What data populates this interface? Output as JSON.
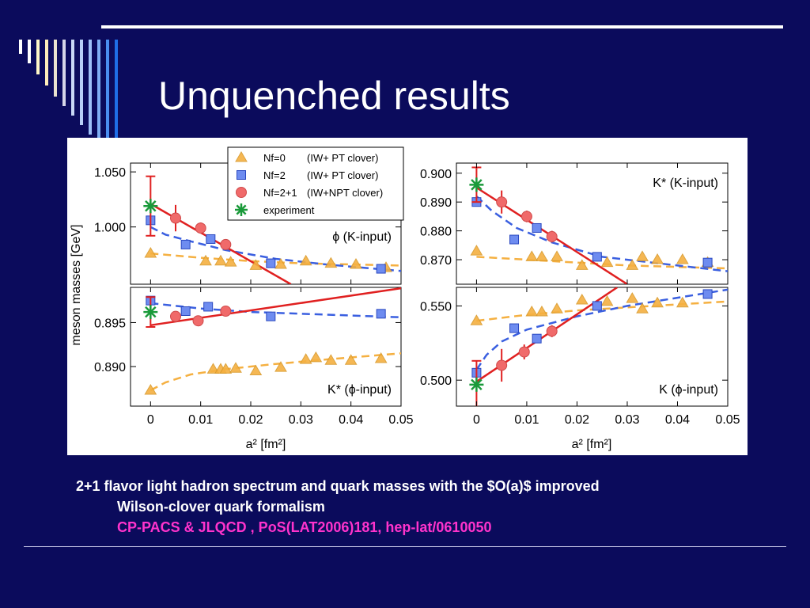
{
  "slide": {
    "title": "Unquenched results",
    "caption_line1": "2+1 flavor light hadron spectrum and quark masses with the $O(a)$ improved",
    "caption_line2": "Wilson-clover quark formalism",
    "citation": "CP-PACS & JLQCD , PoS(LAT2006)181, hep-lat/0610050",
    "accent_color": "#0b0b5c",
    "stripe_colors": [
      "#ffffff",
      "#ffffff",
      "#fff7c8",
      "#ffeebb",
      "#e9e2cf",
      "#d7d7e9",
      "#c9d8f6",
      "#b8d0f8",
      "#9fc2f8",
      "#7fb0f4",
      "#4a8ef0",
      "#1f6ee8"
    ]
  },
  "chart_data": {
    "type": "scatter",
    "shared_ylabel": "meson masses [GeV]",
    "shared_xlabel": "a² [fm²]",
    "legend": [
      {
        "label": "Nf=0",
        "detail": "(IW+   PT clover)",
        "marker": "triangle",
        "color": "#f5b041"
      },
      {
        "label": "Nf=2",
        "detail": "(IW+   PT clover)",
        "marker": "square",
        "color": "#3a5fe0"
      },
      {
        "label": "Nf=2+1",
        "detail": "(IW+NPT clover)",
        "marker": "circle",
        "color": "#f06a6a"
      },
      {
        "label": "experiment",
        "detail": "",
        "marker": "asterisk",
        "color": "#1a9a3a"
      }
    ],
    "panels": [
      {
        "id": "phi-k",
        "label": "ϕ (K-input)",
        "xlim": [
          -0.004,
          0.05
        ],
        "ylim": [
          0.948,
          1.058
        ],
        "yticks": [
          {
            "v": 1.05,
            "t": "1.050"
          },
          {
            "v": 1.0,
            "t": "1.000"
          }
        ],
        "xticks": [],
        "nf0": [
          [
            0.0,
            0.976
          ],
          [
            0.011,
            0.969
          ],
          [
            0.014,
            0.969
          ],
          [
            0.016,
            0.968
          ],
          [
            0.021,
            0.965
          ],
          [
            0.026,
            0.966
          ],
          [
            0.031,
            0.969
          ],
          [
            0.036,
            0.967
          ],
          [
            0.041,
            0.966
          ],
          [
            0.047,
            0.963
          ]
        ],
        "nf2": [
          [
            0.0,
            1.006
          ],
          [
            0.007,
            0.984
          ],
          [
            0.012,
            0.989
          ],
          [
            0.024,
            0.967
          ],
          [
            0.046,
            0.962
          ]
        ],
        "nf21": [
          {
            "x": 0.005,
            "y": 1.008,
            "err": 0.012
          },
          {
            "x": 0.01,
            "y": 0.999,
            "err": 0.005
          },
          {
            "x": 0.015,
            "y": 0.984,
            "err": 0.003
          }
        ],
        "experiment": {
          "x": 0.0,
          "y": 1.019,
          "err": 0.027
        },
        "fit_nf21": [
          [
            0.0,
            1.021
          ],
          [
            0.028,
            0.948
          ]
        ],
        "fit_nf2": [
          [
            0.0,
            1.0
          ],
          [
            0.003,
            0.993
          ],
          [
            0.008,
            0.987
          ],
          [
            0.015,
            0.979
          ],
          [
            0.025,
            0.971
          ],
          [
            0.035,
            0.966
          ],
          [
            0.05,
            0.96
          ]
        ],
        "fit_nf0": [
          [
            0.0,
            0.976
          ],
          [
            0.01,
            0.972
          ],
          [
            0.02,
            0.969
          ],
          [
            0.03,
            0.967
          ],
          [
            0.05,
            0.965
          ]
        ]
      },
      {
        "id": "kstar-k",
        "label": "K* (K-input)",
        "xlim": [
          -0.004,
          0.05
        ],
        "ylim": [
          0.8615,
          0.9035
        ],
        "yticks": [
          {
            "v": 0.9,
            "t": "0.900"
          },
          {
            "v": 0.89,
            "t": "0.890"
          },
          {
            "v": 0.88,
            "t": "0.880"
          },
          {
            "v": 0.87,
            "t": "0.870"
          }
        ],
        "xticks": [],
        "nf0": [
          [
            0.0,
            0.873
          ],
          [
            0.011,
            0.871
          ],
          [
            0.013,
            0.871
          ],
          [
            0.016,
            0.871
          ],
          [
            0.021,
            0.868
          ],
          [
            0.026,
            0.869
          ],
          [
            0.031,
            0.868
          ],
          [
            0.033,
            0.871
          ],
          [
            0.036,
            0.87
          ],
          [
            0.041,
            0.87
          ],
          [
            0.046,
            0.869
          ]
        ],
        "nf2": [
          [
            0.0,
            0.89
          ],
          [
            0.0075,
            0.877
          ],
          [
            0.012,
            0.881
          ],
          [
            0.024,
            0.871
          ],
          [
            0.046,
            0.869
          ]
        ],
        "nf21": [
          {
            "x": 0.005,
            "y": 0.89,
            "err": 0.004
          },
          {
            "x": 0.01,
            "y": 0.885,
            "err": 0.002
          },
          {
            "x": 0.015,
            "y": 0.878,
            "err": 0.002
          }
        ],
        "experiment": {
          "x": 0.0,
          "y": 0.896,
          "err": 0.006
        },
        "fit_nf21": [
          [
            0.0,
            0.895
          ],
          [
            0.03,
            0.8615
          ]
        ],
        "fit_nf2": [
          [
            0.0,
            0.892
          ],
          [
            0.003,
            0.887
          ],
          [
            0.008,
            0.881
          ],
          [
            0.015,
            0.876
          ],
          [
            0.025,
            0.871
          ],
          [
            0.035,
            0.869
          ],
          [
            0.05,
            0.866
          ]
        ],
        "fit_nf0": [
          [
            0.0,
            0.871
          ],
          [
            0.01,
            0.87
          ],
          [
            0.02,
            0.869
          ],
          [
            0.03,
            0.868
          ],
          [
            0.05,
            0.867
          ]
        ]
      },
      {
        "id": "kstar-phi",
        "label": "K* (ϕ-input)",
        "xlim": [
          -0.004,
          0.05
        ],
        "ylim": [
          0.8855,
          0.899
        ],
        "yticks": [
          {
            "v": 0.895,
            "t": "0.895"
          },
          {
            "v": 0.89,
            "t": "0.890"
          }
        ],
        "xticks": [
          {
            "v": 0,
            "t": "0"
          },
          {
            "v": 0.01,
            "t": "0.01"
          },
          {
            "v": 0.02,
            "t": "0.02"
          },
          {
            "v": 0.03,
            "t": "0.03"
          },
          {
            "v": 0.04,
            "t": "0.04"
          },
          {
            "v": 0.05,
            "t": "0.05"
          }
        ],
        "nf0": [
          [
            0.0,
            0.8873
          ],
          [
            0.0125,
            0.8897
          ],
          [
            0.014,
            0.8897
          ],
          [
            0.015,
            0.8897
          ],
          [
            0.017,
            0.8898
          ],
          [
            0.021,
            0.8895
          ],
          [
            0.026,
            0.8899
          ],
          [
            0.031,
            0.8908
          ],
          [
            0.033,
            0.891
          ],
          [
            0.036,
            0.8907
          ],
          [
            0.04,
            0.8907
          ],
          [
            0.046,
            0.8909
          ]
        ],
        "nf2": [
          [
            0.0,
            0.8975
          ],
          [
            0.007,
            0.8963
          ],
          [
            0.0115,
            0.8968
          ],
          [
            0.024,
            0.8957
          ],
          [
            0.046,
            0.896
          ]
        ],
        "nf21": [
          {
            "x": 0.005,
            "y": 0.8957,
            "err": 0.0006
          },
          {
            "x": 0.0095,
            "y": 0.8952,
            "err": 0.0004
          },
          {
            "x": 0.015,
            "y": 0.8963,
            "err": 0.0004
          }
        ],
        "experiment": {
          "x": 0.0,
          "y": 0.8962,
          "err": 0.0017
        },
        "fit_nf21": [
          [
            0.0,
            0.8947
          ],
          [
            0.05,
            0.8989
          ]
        ],
        "fit_nf2": [
          [
            0.0,
            0.8972
          ],
          [
            0.01,
            0.8966
          ],
          [
            0.02,
            0.8962
          ],
          [
            0.03,
            0.896
          ],
          [
            0.05,
            0.8956
          ]
        ],
        "fit_nf0": [
          [
            0.0,
            0.8873
          ],
          [
            0.003,
            0.8882
          ],
          [
            0.008,
            0.8891
          ],
          [
            0.015,
            0.8897
          ],
          [
            0.025,
            0.8903
          ],
          [
            0.035,
            0.8908
          ],
          [
            0.05,
            0.8915
          ]
        ]
      },
      {
        "id": "k-phi",
        "label": "K (ϕ-input)",
        "xlim": [
          -0.004,
          0.05
        ],
        "ylim": [
          0.4825,
          0.5625
        ],
        "yticks": [
          {
            "v": 0.55,
            "t": "0.550"
          },
          {
            "v": 0.5,
            "t": "0.500"
          }
        ],
        "xticks": [
          {
            "v": 0,
            "t": "0"
          },
          {
            "v": 0.01,
            "t": "0.01"
          },
          {
            "v": 0.02,
            "t": "0.02"
          },
          {
            "v": 0.03,
            "t": "0.03"
          },
          {
            "v": 0.04,
            "t": "0.04"
          },
          {
            "v": 0.05,
            "t": "0.05"
          }
        ],
        "nf0": [
          [
            0.0,
            0.54
          ],
          [
            0.011,
            0.546
          ],
          [
            0.013,
            0.546
          ],
          [
            0.016,
            0.548
          ],
          [
            0.021,
            0.554
          ],
          [
            0.026,
            0.553
          ],
          [
            0.031,
            0.555
          ],
          [
            0.033,
            0.548
          ],
          [
            0.036,
            0.552
          ],
          [
            0.041,
            0.552
          ]
        ],
        "nf2": [
          [
            0.0,
            0.505
          ],
          [
            0.0075,
            0.535
          ],
          [
            0.012,
            0.528
          ],
          [
            0.024,
            0.55
          ],
          [
            0.046,
            0.558
          ]
        ],
        "nf21": [
          {
            "x": 0.005,
            "y": 0.51,
            "err": 0.011
          },
          {
            "x": 0.0095,
            "y": 0.519,
            "err": 0.005
          },
          {
            "x": 0.015,
            "y": 0.533,
            "err": 0.004
          }
        ],
        "experiment": {
          "x": 0.0,
          "y": 0.497,
          "err": 0.016
        },
        "fit_nf21": [
          [
            0.0,
            0.499
          ],
          [
            0.028,
            0.5625
          ]
        ],
        "fit_nf2": [
          [
            0.0,
            0.507
          ],
          [
            0.002,
            0.517
          ],
          [
            0.005,
            0.526
          ],
          [
            0.01,
            0.534
          ],
          [
            0.02,
            0.543
          ],
          [
            0.03,
            0.55
          ],
          [
            0.05,
            0.561
          ]
        ],
        "fit_nf0": [
          [
            0.0,
            0.54
          ],
          [
            0.01,
            0.544
          ],
          [
            0.02,
            0.547
          ],
          [
            0.03,
            0.549
          ],
          [
            0.05,
            0.553
          ]
        ]
      }
    ]
  }
}
